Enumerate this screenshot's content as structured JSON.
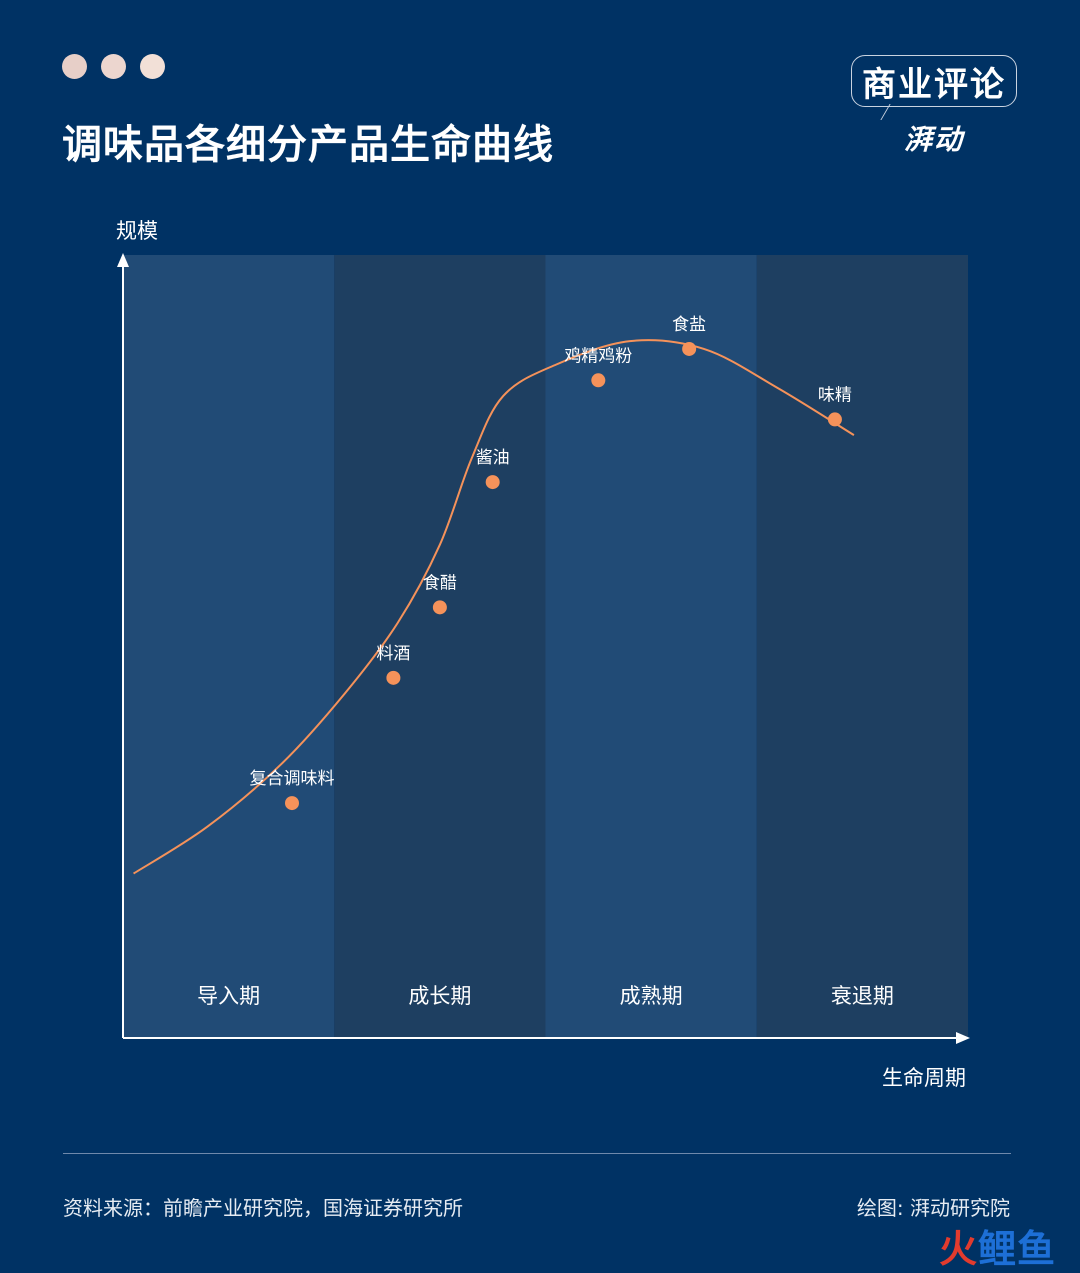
{
  "header": {
    "title": "调味品各细分产品生命曲线",
    "dot_colors": [
      "#e7cfc8",
      "#ecd6cf",
      "#f2e0d7"
    ]
  },
  "brand": {
    "main": "商业评论",
    "sub": "湃动"
  },
  "colors": {
    "background": "#003264",
    "panel_light": "#214b76",
    "panel_dark": "#1e3f61",
    "curve": "#f5925a",
    "axis": "#ffffff"
  },
  "chart_data": {
    "type": "line",
    "ylabel": "规模",
    "xlabel": "生命周期",
    "stages": [
      "导入期",
      "成长期",
      "成熟期",
      "衰退期"
    ],
    "xlim": [
      0,
      4
    ],
    "ylim": [
      0,
      10
    ],
    "grid": false,
    "curve": [
      {
        "x": 0.05,
        "y": 2.1
      },
      {
        "x": 0.4,
        "y": 2.7
      },
      {
        "x": 0.75,
        "y": 3.5
      },
      {
        "x": 1.05,
        "y": 4.4
      },
      {
        "x": 1.3,
        "y": 5.3
      },
      {
        "x": 1.5,
        "y": 6.3
      },
      {
        "x": 1.65,
        "y": 7.4
      },
      {
        "x": 1.8,
        "y": 8.2
      },
      {
        "x": 2.05,
        "y": 8.6
      },
      {
        "x": 2.4,
        "y": 8.9
      },
      {
        "x": 2.75,
        "y": 8.8
      },
      {
        "x": 3.1,
        "y": 8.3
      },
      {
        "x": 3.46,
        "y": 7.7
      }
    ],
    "points": [
      {
        "label": "复合调味料",
        "x": 0.8,
        "y": 3.0
      },
      {
        "label": "料酒",
        "x": 1.28,
        "y": 4.6
      },
      {
        "label": "食醋",
        "x": 1.5,
        "y": 5.5
      },
      {
        "label": "酱油",
        "x": 1.75,
        "y": 7.1
      },
      {
        "label": "鸡精鸡粉",
        "x": 2.25,
        "y": 8.4
      },
      {
        "label": "食盐",
        "x": 2.68,
        "y": 8.8
      },
      {
        "label": "味精",
        "x": 3.37,
        "y": 7.9
      }
    ]
  },
  "footer": {
    "source": "资料来源：前瞻产业研究院，国海证券研究所",
    "credit": "绘图: 湃动研究院",
    "watermark_1": "火",
    "watermark_2": "鲤鱼"
  }
}
